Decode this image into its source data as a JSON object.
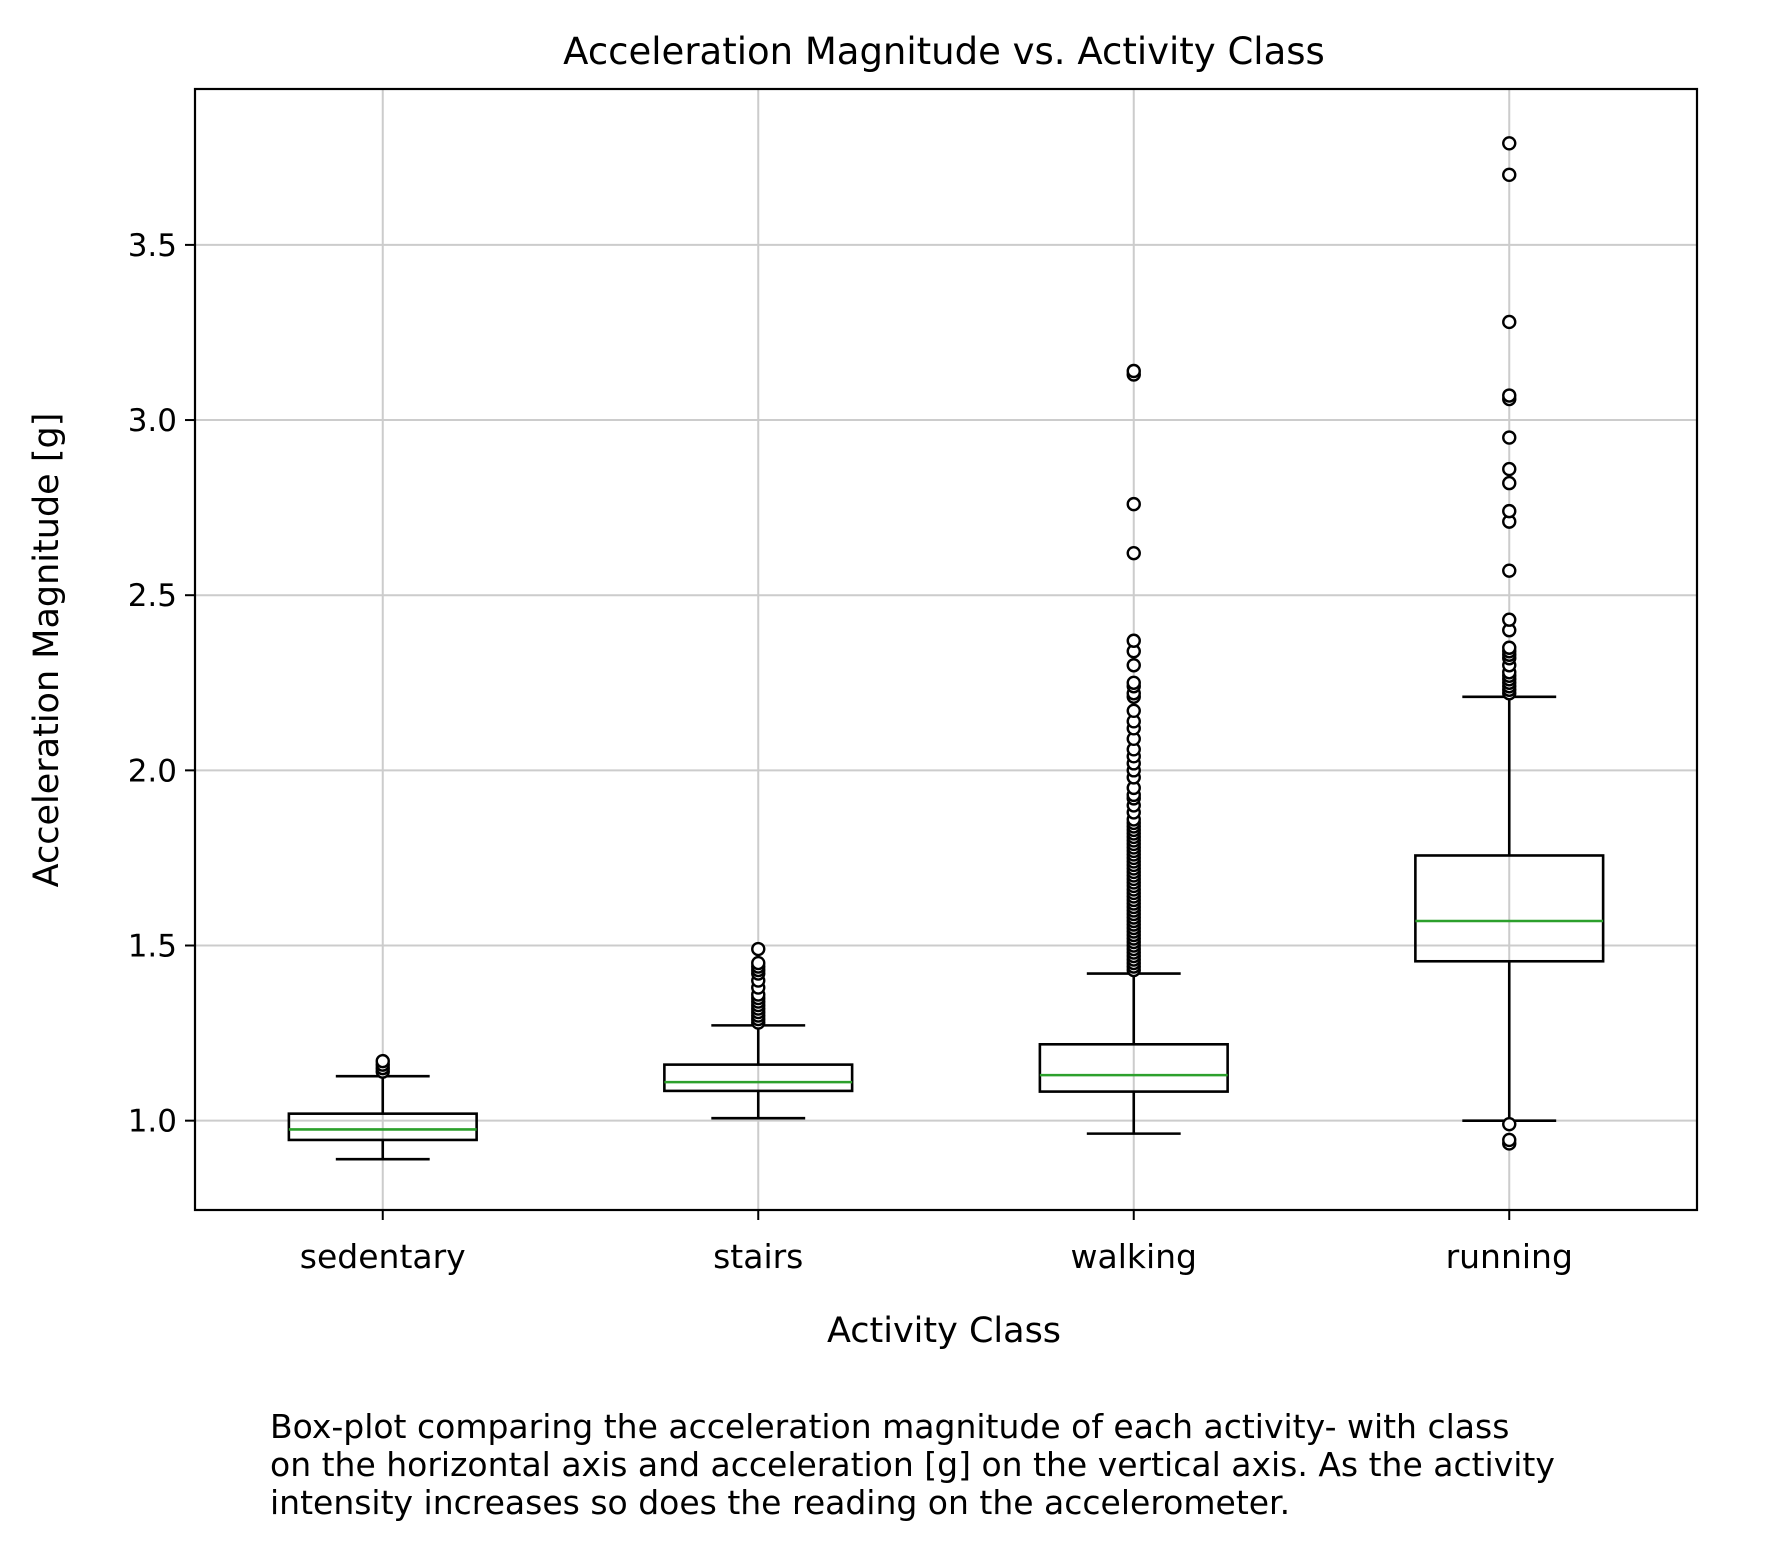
{
  "chart_data": {
    "type": "box",
    "title": "Acceleration Magnitude vs. Activity Class",
    "xlabel": "Activity Class",
    "ylabel": "Acceleration Magnitude [g]",
    "ylim": [
      0.745,
      3.945
    ],
    "yticks": [
      1.0,
      1.5,
      2.0,
      2.5,
      3.0,
      3.5
    ],
    "ytick_labels": [
      "1.0",
      "1.5",
      "2.0",
      "2.5",
      "3.0",
      "3.5"
    ],
    "grid": true,
    "categories": [
      "sedentary",
      "stairs",
      "walking",
      "running"
    ],
    "boxes": [
      {
        "category": "sedentary",
        "whisker_low": 0.89,
        "q1": 0.945,
        "median": 0.975,
        "q3": 1.02,
        "whisker_high": 1.127,
        "outliers": [
          1.14,
          1.15,
          1.16,
          1.17
        ]
      },
      {
        "category": "stairs",
        "whisker_low": 1.007,
        "q1": 1.085,
        "median": 1.11,
        "q3": 1.16,
        "whisker_high": 1.272,
        "outliers": [
          1.28,
          1.29,
          1.3,
          1.31,
          1.32,
          1.33,
          1.34,
          1.35,
          1.36,
          1.38,
          1.4,
          1.42,
          1.43,
          1.44,
          1.45,
          1.49
        ]
      },
      {
        "category": "walking",
        "whisker_low": 0.963,
        "q1": 1.083,
        "median": 1.13,
        "q3": 1.218,
        "whisker_high": 1.42,
        "outliers": [
          1.43,
          1.44,
          1.45,
          1.46,
          1.47,
          1.48,
          1.49,
          1.5,
          1.51,
          1.52,
          1.53,
          1.54,
          1.55,
          1.56,
          1.57,
          1.58,
          1.59,
          1.6,
          1.61,
          1.62,
          1.63,
          1.64,
          1.65,
          1.66,
          1.67,
          1.68,
          1.69,
          1.7,
          1.71,
          1.72,
          1.73,
          1.74,
          1.75,
          1.76,
          1.77,
          1.78,
          1.79,
          1.8,
          1.81,
          1.82,
          1.83,
          1.84,
          1.85,
          1.86,
          1.88,
          1.9,
          1.92,
          1.93,
          1.95,
          1.98,
          2.0,
          2.02,
          2.04,
          2.06,
          2.09,
          2.12,
          2.14,
          2.17,
          2.21,
          2.22,
          2.24,
          2.25,
          2.3,
          2.34,
          2.37,
          2.62,
          2.76,
          3.13,
          3.14
        ]
      },
      {
        "category": "running",
        "whisker_low": 1.0,
        "q1": 1.455,
        "median": 1.57,
        "q3": 1.757,
        "whisker_high": 2.21,
        "outliers": [
          0.935,
          0.945,
          0.99,
          2.22,
          2.23,
          2.24,
          2.25,
          2.26,
          2.27,
          2.28,
          2.3,
          2.32,
          2.33,
          2.34,
          2.35,
          2.4,
          2.43,
          2.57,
          2.71,
          2.74,
          2.82,
          2.86,
          2.95,
          3.06,
          3.07,
          3.28,
          3.7,
          3.79
        ]
      }
    ]
  },
  "caption": "Box-plot comparing the acceleration magnitude of each activity- with class\non the horizontal axis and acceleration [g] on the vertical axis. As the activity\nintensity increases so does the reading on the accelerometer."
}
